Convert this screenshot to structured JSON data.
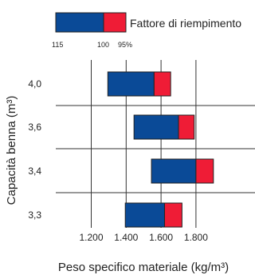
{
  "chart_data": {
    "type": "bar",
    "orientation": "horizontal-range",
    "title": "",
    "xlabel": "Peso specifico materiale (kg/m³)",
    "ylabel": "Capacità benna (m³)",
    "xlim": [
      1100,
      1900
    ],
    "x_ticks": [
      "1.200",
      "1.400",
      "1.600",
      "1.800"
    ],
    "x_tick_values": [
      1200,
      1400,
      1600,
      1800
    ],
    "categories": [
      "4,0",
      "3,6",
      "3,4",
      "3,3"
    ],
    "series": [
      {
        "values": [
          [
            1295,
            1560
          ],
          [
            1445,
            1700
          ],
          [
            1545,
            1800
          ],
          [
            1395,
            1620
          ]
        ]
      },
      {
        "values": [
          [
            1560,
            1655
          ],
          [
            1700,
            1790
          ],
          [
            1800,
            1900
          ],
          [
            1620,
            1720
          ]
        ]
      }
    ],
    "colors": {
      "primary": "#0a4a97",
      "secondary": "#ef1c36"
    },
    "grid": true,
    "legend": {
      "label": "Fattore di riempimento",
      "ticks": [
        "115",
        "100",
        "95%"
      ],
      "placement": "top"
    }
  }
}
